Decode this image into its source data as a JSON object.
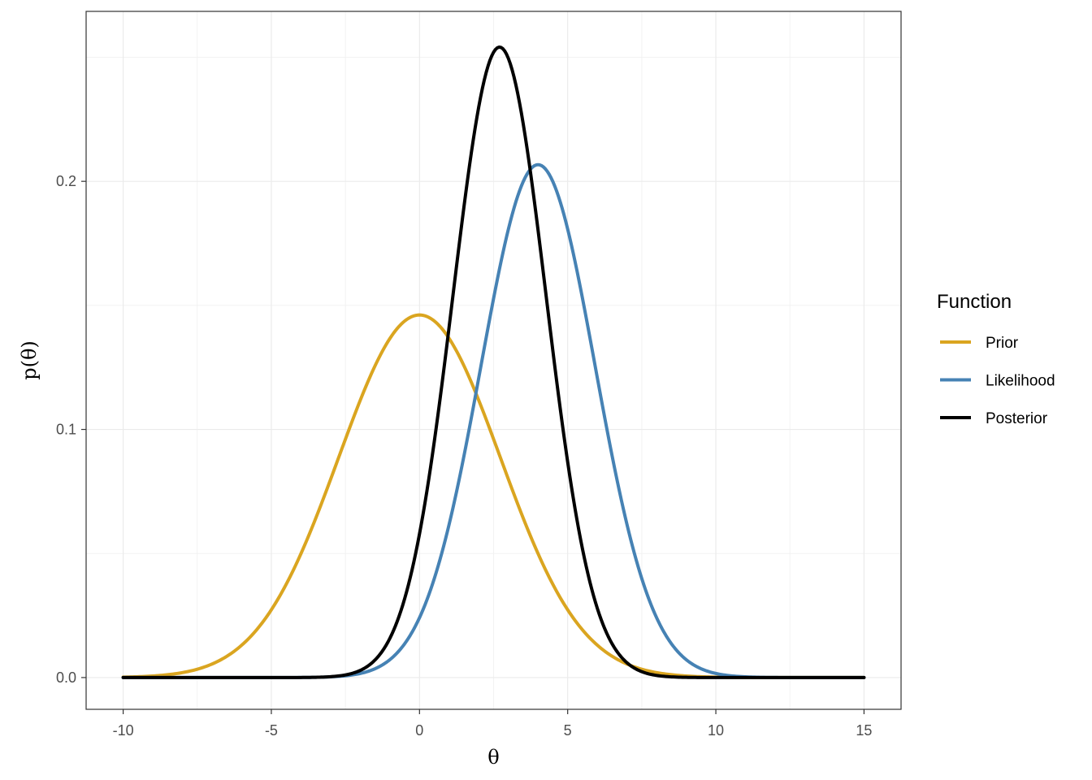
{
  "chart_data": {
    "type": "line",
    "xlabel": "θ",
    "ylabel": "p(θ)",
    "xlim": [
      -11.25,
      16.25
    ],
    "ylim": [
      -0.0128,
      0.2685
    ],
    "x_ticks": [
      -10,
      -5,
      0,
      5,
      10,
      15
    ],
    "x_tick_labels": [
      "-10",
      "-5",
      "0",
      "5",
      "10",
      "15"
    ],
    "y_ticks": [
      0.0,
      0.1,
      0.2
    ],
    "y_tick_labels": [
      "0.0",
      "0.1",
      "0.2"
    ],
    "x_range": [
      -10,
      15
    ],
    "grid": true,
    "legend": {
      "title": "Function",
      "position": "right"
    },
    "series": [
      {
        "name": "Prior",
        "color": "#DAA520",
        "distribution": "normal",
        "mean": 0,
        "sd": 2.73
      },
      {
        "name": "Likelihood",
        "color": "#4682B4",
        "distribution": "normal",
        "mean": 4,
        "sd": 1.93
      },
      {
        "name": "Posterior",
        "color": "#000000",
        "distribution": "normal",
        "mean": 2.7,
        "sd": 1.57
      }
    ]
  }
}
